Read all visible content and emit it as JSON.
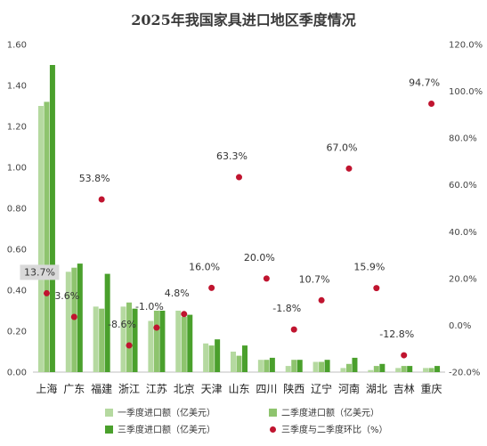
{
  "chart_data": {
    "type": "bar",
    "title": "2025年我国家具进口地区季度情况",
    "categories": [
      "上海",
      "广东",
      "福建",
      "浙江",
      "江苏",
      "北京",
      "天津",
      "山东",
      "四川",
      "陕西",
      "辽宁",
      "河南",
      "湖北",
      "吉林",
      "重庆"
    ],
    "series": [
      {
        "name": "一季度进口额（亿美元）",
        "type": "bar",
        "axis": "left",
        "color": "#b5d9a0",
        "values": [
          1.3,
          0.49,
          0.32,
          0.32,
          0.25,
          0.3,
          0.14,
          0.1,
          0.06,
          0.03,
          0.05,
          0.02,
          0.01,
          0.02,
          0.02
        ]
      },
      {
        "name": "二季度进口额（亿美元）",
        "type": "bar",
        "axis": "left",
        "color": "#8ec46e",
        "values": [
          1.32,
          0.51,
          0.31,
          0.34,
          0.3,
          0.27,
          0.13,
          0.08,
          0.06,
          0.06,
          0.05,
          0.04,
          0.03,
          0.03,
          0.02
        ]
      },
      {
        "name": "三季度进口额（亿美元）",
        "type": "bar",
        "axis": "left",
        "color": "#4aa02c",
        "values": [
          1.5,
          0.53,
          0.48,
          0.31,
          0.3,
          0.28,
          0.16,
          0.13,
          0.07,
          0.06,
          0.06,
          0.07,
          0.04,
          0.03,
          0.03
        ]
      },
      {
        "name": "三季度与二季度环比（%）",
        "type": "scatter",
        "axis": "right",
        "color": "#c0142f",
        "values": [
          13.7,
          3.6,
          53.8,
          -8.6,
          -1.0,
          4.8,
          16.0,
          63.3,
          20.0,
          -1.8,
          10.7,
          67.0,
          15.9,
          -12.8,
          94.7
        ]
      }
    ],
    "data_labels": [
      "13.7%",
      "3.6%",
      "53.8%",
      "-8.6%",
      "-1.0%",
      "4.8%",
      "16.0%",
      "63.3%",
      "20.0%",
      "-1.8%",
      "10.7%",
      "67.0%",
      "15.9%",
      "-12.8%",
      "94.7%"
    ],
    "y_left": {
      "min": 0,
      "max": 1.6,
      "ticks": [
        "0.00",
        "0.20",
        "0.40",
        "0.60",
        "0.80",
        "1.00",
        "1.20",
        "1.40",
        "1.60"
      ]
    },
    "y_right": {
      "min": -20,
      "max": 120,
      "ticks": [
        "-20.0%",
        "0.0%",
        "20.0%",
        "40.0%",
        "60.0%",
        "80.0%",
        "100.0%",
        "120.0%"
      ]
    },
    "grid": false,
    "legend_position": "bottom"
  }
}
